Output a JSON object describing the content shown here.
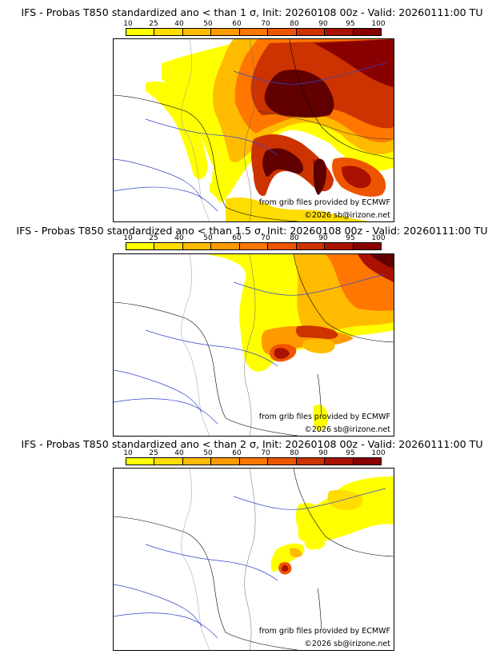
{
  "palette": {
    "colors": [
      "#ffff00",
      "#ffdd00",
      "#ffbb00",
      "#ff9900",
      "#ff7700",
      "#ee5500",
      "#cc3300",
      "#aa1100",
      "#880000",
      "#600000"
    ],
    "ticks": [
      "10",
      "25",
      "40",
      "50",
      "60",
      "70",
      "80",
      "90",
      "95",
      "100"
    ]
  },
  "panels": [
    {
      "title": "IFS - Probas T850  standardized ano < than 1 σ, Init: 20260108 00z - Valid: 20260111:00 TU",
      "credit_grib": "from grib files provided by ECMWF",
      "credit_site": "©2026 sb@irizone.net"
    },
    {
      "title": "IFS - Probas T850  standardized ano < than 1.5 σ, Init: 20260108 00z - Valid: 20260111:00 TU",
      "credit_grib": "from grib files provided by ECMWF",
      "credit_site": "©2026 sb@irizone.net"
    },
    {
      "title": "IFS - Probas T850  standardized ano < than 2 σ, Init: 20260108 00z - Valid: 20260111:00 TU",
      "credit_grib": "from grib files provided by ECMWF",
      "credit_site": "©2026 sb@irizone.net"
    }
  ]
}
